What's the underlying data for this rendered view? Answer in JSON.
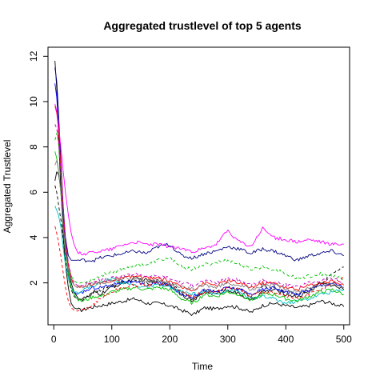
{
  "chart_data": {
    "type": "line",
    "title": "Aggregated trustlevel of top 5 agents",
    "xlabel": "Time",
    "ylabel": "Aggregated Trustlevel",
    "xlim": [
      -10,
      510
    ],
    "ylim": [
      0.15,
      12.4
    ],
    "xticks": [
      0,
      100,
      200,
      300,
      400,
      500
    ],
    "yticks": [
      2,
      4,
      6,
      8,
      10,
      12
    ],
    "grid": false,
    "legend": "none",
    "series": [
      {
        "color": "#000000",
        "dash": "solid",
        "x": [
          2,
          5,
          8,
          12,
          16,
          20,
          25,
          30,
          35,
          40,
          45,
          50,
          60,
          70,
          80,
          100,
          120,
          140,
          160,
          180,
          200,
          220,
          240,
          260,
          280,
          300,
          320,
          340,
          360,
          380,
          400,
          420,
          440,
          460,
          480,
          500
        ],
        "y": [
          11.8,
          10.6,
          8.6,
          6.2,
          4.2,
          2.8,
          1.8,
          1.1,
          0.9,
          0.85,
          0.8,
          0.8,
          0.9,
          0.95,
          1.0,
          1.1,
          1.2,
          1.3,
          1.1,
          1.1,
          1.0,
          0.8,
          0.6,
          0.9,
          0.85,
          1.0,
          0.9,
          0.7,
          1.0,
          1.1,
          1.0,
          0.9,
          1.0,
          1.2,
          1.1,
          0.95
        ]
      },
      {
        "color": "#000000",
        "dash": "solid",
        "x": [
          2,
          5,
          8,
          12,
          16,
          20,
          25,
          30,
          35,
          40,
          45,
          50,
          60,
          70,
          80,
          100,
          120,
          140,
          160,
          180,
          200,
          220,
          240,
          260,
          280,
          300,
          320,
          340,
          360,
          380,
          400,
          420,
          440,
          460,
          480,
          500
        ],
        "y": [
          6.5,
          6.9,
          6.8,
          6.2,
          5.0,
          3.5,
          2.6,
          2.0,
          1.6,
          1.4,
          1.3,
          1.3,
          1.4,
          1.6,
          1.5,
          1.8,
          2.0,
          2.2,
          2.1,
          2.0,
          1.9,
          1.5,
          1.2,
          1.6,
          1.5,
          1.7,
          1.5,
          1.2,
          1.6,
          1.7,
          1.5,
          1.4,
          1.6,
          2.0,
          1.9,
          1.7
        ]
      },
      {
        "color": "#000000",
        "dash": "dashed",
        "x": [
          2,
          5,
          8,
          12,
          16,
          20,
          25,
          30,
          35,
          40,
          45,
          50,
          60,
          70,
          80,
          100,
          120,
          140,
          160,
          180,
          200,
          220,
          240,
          260,
          280,
          300,
          320,
          340,
          360,
          380,
          400,
          420,
          440,
          460,
          480,
          500
        ],
        "y": [
          6.3,
          6.0,
          5.5,
          4.8,
          4.0,
          3.0,
          2.2,
          1.7,
          1.4,
          1.3,
          1.2,
          1.2,
          1.4,
          1.6,
          1.7,
          1.9,
          2.0,
          2.1,
          2.0,
          2.1,
          2.0,
          1.6,
          1.3,
          1.7,
          1.6,
          1.8,
          1.7,
          1.4,
          1.8,
          1.8,
          1.6,
          1.5,
          1.7,
          2.0,
          2.4,
          2.7
        ]
      },
      {
        "color": "#000080",
        "dash": "solid",
        "x": [
          2,
          5,
          8,
          12,
          16,
          20,
          25,
          30,
          35,
          40,
          45,
          50,
          60,
          70,
          80,
          100,
          120,
          140,
          160,
          180,
          200,
          220,
          240,
          260,
          280,
          300,
          320,
          340,
          360,
          380,
          400,
          420,
          440,
          460,
          480,
          500
        ],
        "y": [
          11.5,
          10.9,
          9.6,
          7.5,
          5.5,
          4.0,
          3.2,
          3.0,
          3.0,
          3.0,
          3.0,
          3.0,
          3.0,
          3.0,
          3.1,
          3.2,
          3.3,
          3.4,
          3.3,
          3.6,
          3.7,
          3.2,
          3.1,
          3.3,
          3.4,
          3.6,
          3.5,
          3.3,
          3.5,
          3.4,
          3.2,
          3.0,
          3.2,
          3.3,
          3.4,
          3.2
        ]
      },
      {
        "color": "#0000ff",
        "dash": "solid",
        "x": [
          2,
          5,
          8,
          12,
          16,
          20,
          25,
          30,
          35,
          40,
          45,
          50,
          60,
          70,
          80,
          100,
          120,
          140,
          160,
          180,
          200,
          220,
          240,
          260,
          280,
          300,
          320,
          340,
          360,
          380,
          400,
          420,
          440,
          460,
          480,
          500
        ],
        "y": [
          10.8,
          10.2,
          9.0,
          7.2,
          5.2,
          3.6,
          2.4,
          1.8,
          1.6,
          1.5,
          1.5,
          1.6,
          1.7,
          1.8,
          1.8,
          1.9,
          2.1,
          2.0,
          1.9,
          2.0,
          1.9,
          1.5,
          1.4,
          1.7,
          1.6,
          1.8,
          1.7,
          1.5,
          1.7,
          1.8,
          1.6,
          1.5,
          1.7,
          1.9,
          2.0,
          1.8
        ]
      },
      {
        "color": "#00c0c0",
        "dash": "solid",
        "x": [
          2,
          5,
          8,
          12,
          16,
          20,
          25,
          30,
          35,
          40,
          45,
          50,
          60,
          70,
          80,
          100,
          120,
          140,
          160,
          180,
          200,
          220,
          240,
          260,
          280,
          300,
          320,
          340,
          360,
          380,
          400,
          420,
          440,
          460,
          480,
          500
        ],
        "y": [
          5.4,
          5.2,
          5.0,
          4.5,
          3.6,
          2.8,
          2.2,
          1.8,
          1.6,
          1.6,
          1.6,
          1.7,
          1.8,
          1.9,
          2.0,
          2.2,
          2.0,
          1.9,
          1.8,
          1.9,
          1.8,
          1.6,
          1.5,
          1.6,
          1.5,
          1.7,
          1.6,
          1.3,
          1.4,
          1.3,
          1.1,
          1.2,
          1.3,
          1.5,
          1.6,
          1.7
        ]
      },
      {
        "color": "#00c000",
        "dash": "solid",
        "x": [
          2,
          5,
          8,
          12,
          16,
          20,
          25,
          30,
          35,
          40,
          45,
          50,
          60,
          70,
          80,
          100,
          120,
          140,
          160,
          180,
          200,
          220,
          240,
          260,
          280,
          300,
          320,
          340,
          360,
          380,
          400,
          420,
          440,
          460,
          480,
          500
        ],
        "y": [
          7.8,
          7.5,
          7.0,
          6.0,
          4.6,
          3.3,
          2.4,
          1.8,
          1.5,
          1.3,
          1.2,
          1.2,
          1.3,
          1.4,
          1.4,
          1.6,
          1.7,
          1.8,
          1.7,
          1.8,
          1.7,
          1.3,
          1.1,
          1.5,
          1.4,
          1.6,
          1.5,
          1.2,
          1.5,
          1.5,
          1.3,
          1.2,
          1.4,
          1.6,
          1.7,
          1.5
        ]
      },
      {
        "color": "#00c000",
        "dash": "dashed",
        "x": [
          2,
          5,
          8,
          12,
          16,
          20,
          25,
          30,
          35,
          40,
          45,
          50,
          60,
          70,
          80,
          100,
          120,
          140,
          160,
          180,
          200,
          220,
          240,
          260,
          280,
          300,
          320,
          340,
          360,
          380,
          400,
          420,
          440,
          460,
          480,
          500
        ],
        "y": [
          8.3,
          8.6,
          8.2,
          7.0,
          5.4,
          3.8,
          2.8,
          2.3,
          2.1,
          2.0,
          2.0,
          2.0,
          2.1,
          2.2,
          2.3,
          2.5,
          2.6,
          2.8,
          2.8,
          3.0,
          3.1,
          2.7,
          2.6,
          2.8,
          2.9,
          3.0,
          2.8,
          2.6,
          2.7,
          2.6,
          2.4,
          2.2,
          2.3,
          2.4,
          2.3,
          2.2
        ]
      },
      {
        "color": "#ff0000",
        "dash": "dashed",
        "x": [
          2,
          5,
          8,
          12,
          16,
          20,
          25,
          30,
          35,
          40,
          45,
          50,
          60,
          70,
          80,
          100,
          120,
          140,
          160,
          180,
          200,
          220,
          240,
          260,
          280,
          300,
          320,
          340,
          360,
          380,
          400,
          420,
          440,
          460,
          480,
          500
        ],
        "y": [
          4.5,
          4.2,
          3.8,
          3.2,
          2.5,
          1.8,
          1.2,
          0.9,
          0.8,
          0.75,
          0.75,
          0.8,
          0.9,
          1.1,
          1.3,
          1.6,
          1.8,
          1.9,
          1.9,
          2.0,
          1.9,
          1.6,
          1.4,
          1.6,
          1.6,
          1.8,
          1.7,
          1.4,
          1.6,
          1.6,
          1.4,
          1.3,
          1.5,
          1.7,
          2.0,
          2.2
        ]
      },
      {
        "color": "#ff0000",
        "dash": "solid",
        "x": [
          2,
          5,
          8,
          12,
          16,
          20,
          25,
          30,
          35,
          40,
          45,
          50,
          60,
          70,
          80,
          100,
          120,
          140,
          160,
          180,
          200,
          220,
          240,
          260,
          280,
          300,
          320,
          340,
          360,
          380,
          400,
          420,
          440,
          460,
          480,
          500
        ],
        "y": [
          9.8,
          9.5,
          8.8,
          7.2,
          5.4,
          3.8,
          2.8,
          2.2,
          1.9,
          1.8,
          1.8,
          1.8,
          1.9,
          2.0,
          2.0,
          2.1,
          2.2,
          2.3,
          2.2,
          2.2,
          2.1,
          1.8,
          1.7,
          2.0,
          1.9,
          2.1,
          2.0,
          1.8,
          2.0,
          2.0,
          1.8,
          1.7,
          1.9,
          2.0,
          2.1,
          1.9
        ]
      },
      {
        "color": "#ff00ff",
        "dash": "solid",
        "x": [
          2,
          5,
          8,
          12,
          16,
          20,
          25,
          30,
          35,
          40,
          45,
          50,
          60,
          70,
          80,
          100,
          120,
          140,
          160,
          180,
          200,
          220,
          240,
          260,
          280,
          300,
          320,
          340,
          360,
          380,
          400,
          420,
          440,
          460,
          480,
          500
        ],
        "y": [
          9.9,
          9.6,
          9.0,
          8.0,
          7.0,
          6.0,
          5.0,
          4.2,
          3.7,
          3.4,
          3.3,
          3.3,
          3.3,
          3.4,
          3.4,
          3.5,
          3.7,
          3.8,
          3.7,
          3.7,
          3.6,
          3.5,
          3.4,
          3.5,
          3.7,
          4.3,
          3.8,
          3.6,
          4.4,
          4.0,
          3.9,
          3.8,
          3.9,
          3.8,
          3.7,
          3.7
        ]
      },
      {
        "color": "#c000c0",
        "dash": "dashed",
        "x": [
          2,
          5,
          8,
          12,
          16,
          20,
          25,
          30,
          35,
          40,
          45,
          50,
          60,
          70,
          80,
          100,
          120,
          140,
          160,
          180,
          200,
          220,
          240,
          260,
          280,
          300,
          320,
          340,
          360,
          380,
          400,
          420,
          440,
          460,
          480,
          500
        ],
        "y": [
          9.0,
          8.8,
          8.3,
          7.0,
          5.4,
          3.9,
          2.9,
          2.3,
          2.0,
          1.9,
          1.9,
          1.9,
          2.0,
          2.1,
          2.1,
          2.2,
          2.3,
          2.4,
          2.3,
          2.3,
          2.2,
          2.0,
          1.9,
          2.1,
          2.0,
          2.2,
          2.1,
          1.9,
          2.1,
          2.0,
          1.9,
          1.8,
          2.0,
          2.1,
          2.2,
          2.0
        ]
      },
      {
        "color": "#808080",
        "dash": "solid",
        "x": [
          2,
          5,
          8,
          12,
          16,
          20,
          25,
          30,
          35,
          40,
          45,
          50,
          60,
          70,
          80,
          100,
          120,
          140,
          160,
          180,
          200,
          220,
          240,
          260,
          280,
          300,
          320,
          340,
          360,
          380,
          400,
          420,
          440,
          460,
          480,
          500
        ],
        "y": [
          7.2,
          7.4,
          7.0,
          6.0,
          4.6,
          3.4,
          2.6,
          2.1,
          1.9,
          1.8,
          1.8,
          1.8,
          1.9,
          2.0,
          2.0,
          2.1,
          2.2,
          2.2,
          2.1,
          2.1,
          2.0,
          1.8,
          1.7,
          1.9,
          1.8,
          2.0,
          1.9,
          1.7,
          1.9,
          1.9,
          1.7,
          1.6,
          1.8,
          1.9,
          2.0,
          1.8
        ]
      }
    ]
  }
}
